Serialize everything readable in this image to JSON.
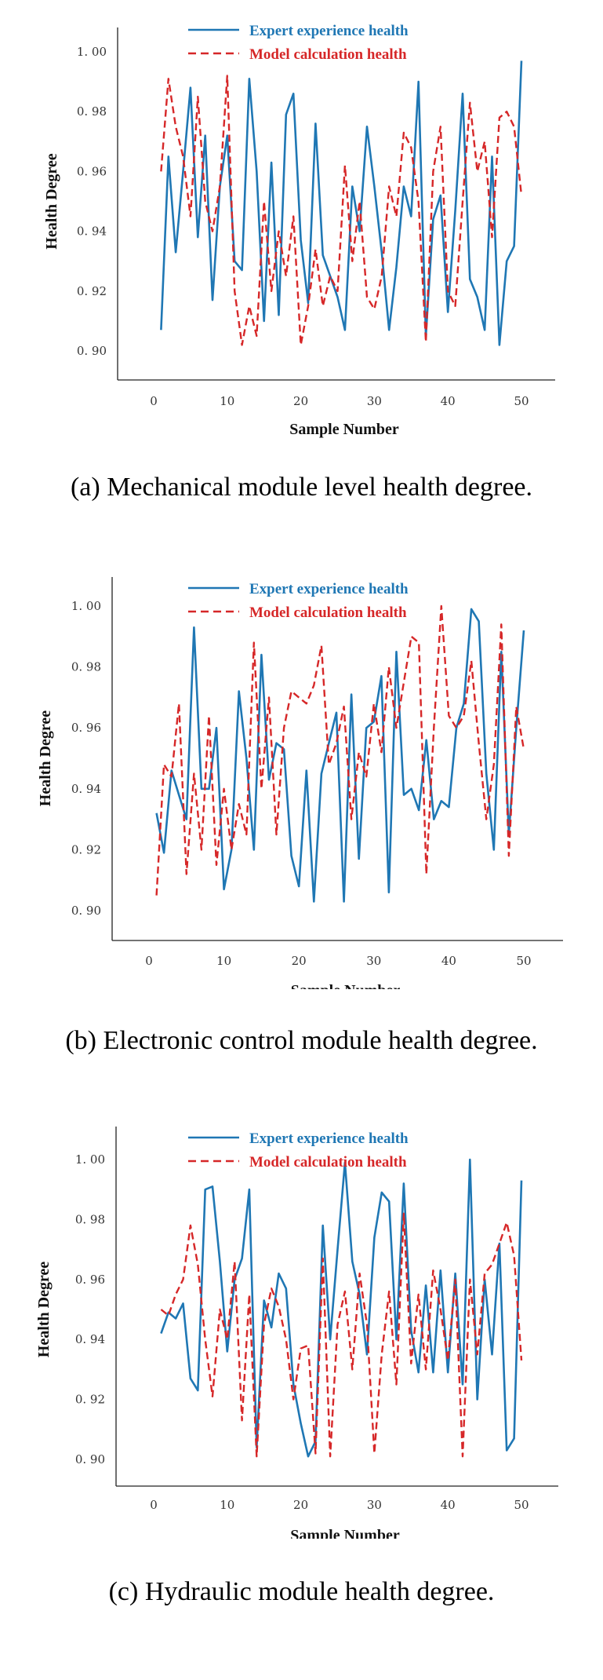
{
  "colors": {
    "expert": "#1f77b4",
    "model": "#d62728",
    "axis": "#222222"
  },
  "chart_data": [
    {
      "type": "line",
      "caption": "(a) Mechanical module level health degree.",
      "xlabel": "Sample Number",
      "ylabel": "Health Degree",
      "xlim": [
        0,
        50
      ],
      "ylim": [
        0.9,
        1.0
      ],
      "xticks": [
        "0",
        "10",
        "20",
        "30",
        "40",
        "50"
      ],
      "yticks": [
        "0. 90",
        "0. 92",
        "0. 94",
        "0. 96",
        "0. 98",
        "1. 00"
      ],
      "legend_position": "top",
      "x": [
        1,
        2,
        3,
        4,
        5,
        6,
        7,
        8,
        9,
        10,
        11,
        12,
        13,
        14,
        15,
        16,
        17,
        18,
        19,
        20,
        21,
        22,
        23,
        24,
        25,
        26,
        27,
        28,
        29,
        30,
        31,
        32,
        33,
        34,
        35,
        36,
        37,
        38,
        39,
        40,
        41,
        42,
        43,
        44,
        45,
        46,
        47,
        48,
        49,
        50
      ],
      "series": [
        {
          "name": "Expert experience health",
          "style": "solid",
          "values": [
            0.907,
            0.965,
            0.933,
            0.96,
            0.988,
            0.938,
            0.972,
            0.917,
            0.955,
            0.972,
            0.93,
            0.927,
            0.991,
            0.96,
            0.91,
            0.963,
            0.912,
            0.979,
            0.986,
            0.937,
            0.916,
            0.976,
            0.932,
            0.925,
            0.918,
            0.907,
            0.955,
            0.94,
            0.975,
            0.955,
            0.933,
            0.907,
            0.928,
            0.955,
            0.945,
            0.99,
            0.905,
            0.944,
            0.952,
            0.913,
            0.947,
            0.986,
            0.924,
            0.918,
            0.907,
            0.965,
            0.902,
            0.93,
            0.935,
            0.997
          ]
        },
        {
          "name": "Model calculation health",
          "style": "dashed",
          "values": [
            0.96,
            0.991,
            0.975,
            0.965,
            0.945,
            0.985,
            0.95,
            0.94,
            0.955,
            0.992,
            0.92,
            0.902,
            0.915,
            0.905,
            0.95,
            0.92,
            0.94,
            0.925,
            0.945,
            0.902,
            0.915,
            0.934,
            0.915,
            0.925,
            0.92,
            0.962,
            0.93,
            0.95,
            0.918,
            0.914,
            0.925,
            0.955,
            0.945,
            0.973,
            0.968,
            0.95,
            0.903,
            0.96,
            0.975,
            0.92,
            0.915,
            0.95,
            0.983,
            0.96,
            0.97,
            0.938,
            0.978,
            0.98,
            0.975,
            0.952
          ]
        }
      ]
    },
    {
      "type": "line",
      "caption": "(b) Electronic control module health degree.",
      "xlabel": "Sample Number",
      "ylabel": "Health Degree",
      "xlim": [
        0,
        50
      ],
      "ylim": [
        0.9,
        1.0
      ],
      "xticks": [
        "0",
        "10",
        "20",
        "30",
        "40",
        "50"
      ],
      "yticks": [
        "0. 90",
        "0. 92",
        "0. 94",
        "0. 96",
        "0. 98",
        "1. 00"
      ],
      "legend_position": "top",
      "x": [
        1,
        2,
        3,
        4,
        5,
        6,
        7,
        8,
        9,
        10,
        11,
        12,
        13,
        14,
        15,
        16,
        17,
        18,
        19,
        20,
        21,
        22,
        23,
        24,
        25,
        26,
        27,
        28,
        29,
        30,
        31,
        32,
        33,
        34,
        35,
        36,
        37,
        38,
        39,
        40,
        41,
        42,
        43,
        44,
        45,
        46,
        47,
        48,
        49,
        50
      ],
      "series": [
        {
          "name": "Expert experience health",
          "style": "solid",
          "values": [
            0.932,
            0.919,
            0.946,
            0.938,
            0.93,
            0.993,
            0.94,
            0.94,
            0.96,
            0.907,
            0.92,
            0.972,
            0.95,
            0.92,
            0.984,
            0.943,
            0.955,
            0.953,
            0.918,
            0.908,
            0.946,
            0.903,
            0.945,
            0.955,
            0.965,
            0.903,
            0.971,
            0.917,
            0.96,
            0.962,
            0.977,
            0.906,
            0.985,
            0.938,
            0.94,
            0.933,
            0.956,
            0.93,
            0.936,
            0.934,
            0.96,
            0.968,
            0.999,
            0.995,
            0.945,
            0.92,
            0.985,
            0.925,
            0.96,
            0.992
          ]
        },
        {
          "name": "Model calculation health",
          "style": "dashed",
          "values": [
            0.905,
            0.948,
            0.944,
            0.968,
            0.912,
            0.945,
            0.92,
            0.964,
            0.915,
            0.94,
            0.92,
            0.935,
            0.925,
            0.988,
            0.94,
            0.97,
            0.925,
            0.96,
            0.972,
            0.97,
            0.968,
            0.974,
            0.987,
            0.948,
            0.955,
            0.967,
            0.93,
            0.952,
            0.944,
            0.968,
            0.952,
            0.98,
            0.96,
            0.975,
            0.99,
            0.988,
            0.912,
            0.96,
            1.0,
            0.964,
            0.96,
            0.964,
            0.982,
            0.955,
            0.93,
            0.948,
            0.994,
            0.918,
            0.967,
            0.953
          ]
        }
      ]
    },
    {
      "type": "line",
      "caption": "(c) Hydraulic module health degree.",
      "xlabel": "Sample Number",
      "ylabel": "Health Degree",
      "xlim": [
        0,
        50
      ],
      "ylim": [
        0.9,
        1.0
      ],
      "xticks": [
        "0",
        "10",
        "20",
        "30",
        "40",
        "50"
      ],
      "yticks": [
        "0. 90",
        "0. 92",
        "0. 94",
        "0. 96",
        "0. 98",
        "1. 00"
      ],
      "legend_position": "top",
      "x": [
        1,
        2,
        3,
        4,
        5,
        6,
        7,
        8,
        9,
        10,
        11,
        12,
        13,
        14,
        15,
        16,
        17,
        18,
        19,
        20,
        21,
        22,
        23,
        24,
        25,
        26,
        27,
        28,
        29,
        30,
        31,
        32,
        33,
        34,
        35,
        36,
        37,
        38,
        39,
        40,
        41,
        42,
        43,
        44,
        45,
        46,
        47,
        48,
        49,
        50
      ],
      "series": [
        {
          "name": "Expert experience health",
          "style": "solid",
          "values": [
            0.942,
            0.949,
            0.947,
            0.952,
            0.927,
            0.923,
            0.99,
            0.991,
            0.966,
            0.936,
            0.96,
            0.967,
            0.99,
            0.904,
            0.953,
            0.944,
            0.962,
            0.957,
            0.925,
            0.912,
            0.901,
            0.906,
            0.978,
            0.94,
            0.97,
            0.999,
            0.966,
            0.955,
            0.935,
            0.974,
            0.989,
            0.986,
            0.94,
            0.992,
            0.943,
            0.929,
            0.958,
            0.929,
            0.963,
            0.929,
            0.962,
            0.925,
            1.0,
            0.92,
            0.96,
            0.935,
            0.972,
            0.903,
            0.907,
            0.993
          ]
        },
        {
          "name": "Model calculation health",
          "style": "dashed",
          "values": [
            0.95,
            0.948,
            0.955,
            0.96,
            0.978,
            0.965,
            0.94,
            0.921,
            0.95,
            0.94,
            0.966,
            0.913,
            0.955,
            0.901,
            0.945,
            0.957,
            0.951,
            0.94,
            0.92,
            0.937,
            0.938,
            0.902,
            0.967,
            0.901,
            0.945,
            0.956,
            0.93,
            0.962,
            0.945,
            0.902,
            0.935,
            0.956,
            0.925,
            0.982,
            0.932,
            0.955,
            0.93,
            0.963,
            0.95,
            0.933,
            0.96,
            0.901,
            0.96,
            0.935,
            0.962,
            0.965,
            0.972,
            0.979,
            0.968,
            0.933
          ]
        }
      ]
    }
  ]
}
